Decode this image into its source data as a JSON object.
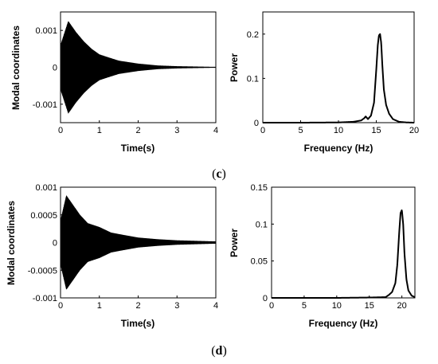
{
  "chart_data": [
    {
      "id": "c-time",
      "type": "line",
      "xlabel": "Time(s)",
      "ylabel": "Modal coordinates",
      "xlim": [
        0,
        4
      ],
      "ylim": [
        -0.0015,
        0.0015
      ],
      "xticks": [
        0,
        1,
        2,
        3,
        4
      ],
      "xtick_labels": [
        "0",
        "1",
        "2",
        "3",
        "4"
      ],
      "yticks": [
        -0.001,
        0,
        0.001
      ],
      "ytick_labels": [
        "-0.001",
        "0",
        "0.001"
      ],
      "grid": false,
      "series": [
        {
          "color": "#000000",
          "description_peak_amplitude": 0.00125,
          "x": [
            0,
            0.2,
            0.4,
            0.6,
            0.8,
            1.0,
            1.2,
            1.5,
            2.0,
            2.5,
            3.0,
            3.5,
            4.0
          ],
          "y_envelope": [
            0.0006,
            0.00125,
            0.00095,
            0.0007,
            0.0005,
            0.00035,
            0.00028,
            0.00018,
            0.0001,
            5e-05,
            3e-05,
            2e-05,
            1e-05
          ]
        }
      ]
    },
    {
      "id": "c-freq",
      "type": "line",
      "xlabel": "Frequency (Hz)",
      "ylabel": "Power",
      "xlim": [
        0,
        20
      ],
      "ylim": [
        0,
        0.25
      ],
      "xticks": [
        0,
        5,
        10,
        15,
        20
      ],
      "xtick_labels": [
        "0",
        "5",
        "10",
        "15",
        "20"
      ],
      "yticks": [
        0,
        0.1,
        0.2
      ],
      "ytick_labels": [
        "0",
        "0.1",
        "0.2"
      ],
      "grid": false,
      "series": [
        {
          "color": "#000000",
          "x": [
            0,
            5,
            10,
            12,
            13,
            13.4,
            13.6,
            13.9,
            14.3,
            14.7,
            15.0,
            15.2,
            15.35,
            15.5,
            15.65,
            15.8,
            16.0,
            16.3,
            16.7,
            17.2,
            18,
            19,
            20
          ],
          "y": [
            0,
            0,
            0.0005,
            0.002,
            0.005,
            0.01,
            0.014,
            0.008,
            0.016,
            0.045,
            0.12,
            0.175,
            0.197,
            0.2,
            0.18,
            0.13,
            0.075,
            0.04,
            0.02,
            0.008,
            0.002,
            0.0005,
            0
          ]
        }
      ]
    },
    {
      "id": "d-time",
      "type": "line",
      "xlabel": "Time(s)",
      "ylabel": "Modal coordinates",
      "xlim": [
        0,
        4
      ],
      "ylim": [
        -0.001,
        0.001
      ],
      "xticks": [
        0,
        1,
        2,
        3,
        4
      ],
      "xtick_labels": [
        "0",
        "1",
        "2",
        "3",
        "4"
      ],
      "yticks": [
        -0.001,
        -0.0005,
        0,
        0.0005,
        0.001
      ],
      "ytick_labels": [
        "-0.001",
        "-0.0005",
        "0",
        "0.0005",
        "0.001"
      ],
      "grid": false,
      "series": [
        {
          "color": "#000000",
          "x": [
            0,
            0.15,
            0.3,
            0.5,
            0.7,
            1.0,
            1.3,
            1.6,
            2.0,
            2.5,
            3.0,
            3.5,
            4.0
          ],
          "y_envelope": [
            0.0004,
            0.00085,
            0.0007,
            0.0005,
            0.00035,
            0.00028,
            0.00018,
            0.00014,
            9e-05,
            6e-05,
            4e-05,
            3e-05,
            2e-05
          ]
        }
      ]
    },
    {
      "id": "d-freq",
      "type": "line",
      "xlabel": "Frequency (Hz)",
      "ylabel": "Power",
      "xlim": [
        0,
        22
      ],
      "ylim": [
        0,
        0.15
      ],
      "xticks": [
        0,
        5,
        10,
        15,
        20
      ],
      "xtick_labels": [
        "0",
        "5",
        "10",
        "15",
        "20"
      ],
      "yticks": [
        0,
        0.05,
        0.1,
        0.15
      ],
      "ytick_labels": [
        "0",
        "0.05",
        "0.1",
        "0.15"
      ],
      "grid": false,
      "series": [
        {
          "color": "#000000",
          "x": [
            0,
            5,
            10,
            15,
            17.5,
            18.0,
            18.5,
            19.0,
            19.3,
            19.6,
            19.8,
            20.0,
            20.2,
            20.4,
            20.7,
            21.0,
            21.5,
            22
          ],
          "y": [
            0,
            0,
            0,
            0.0005,
            0.001,
            0.004,
            0.008,
            0.02,
            0.045,
            0.09,
            0.115,
            0.119,
            0.1,
            0.06,
            0.025,
            0.01,
            0.003,
            0.001
          ]
        }
      ]
    }
  ],
  "captions": {
    "c": "(c)",
    "c_letter": "c",
    "d": "(d)",
    "d_letter": "d"
  }
}
